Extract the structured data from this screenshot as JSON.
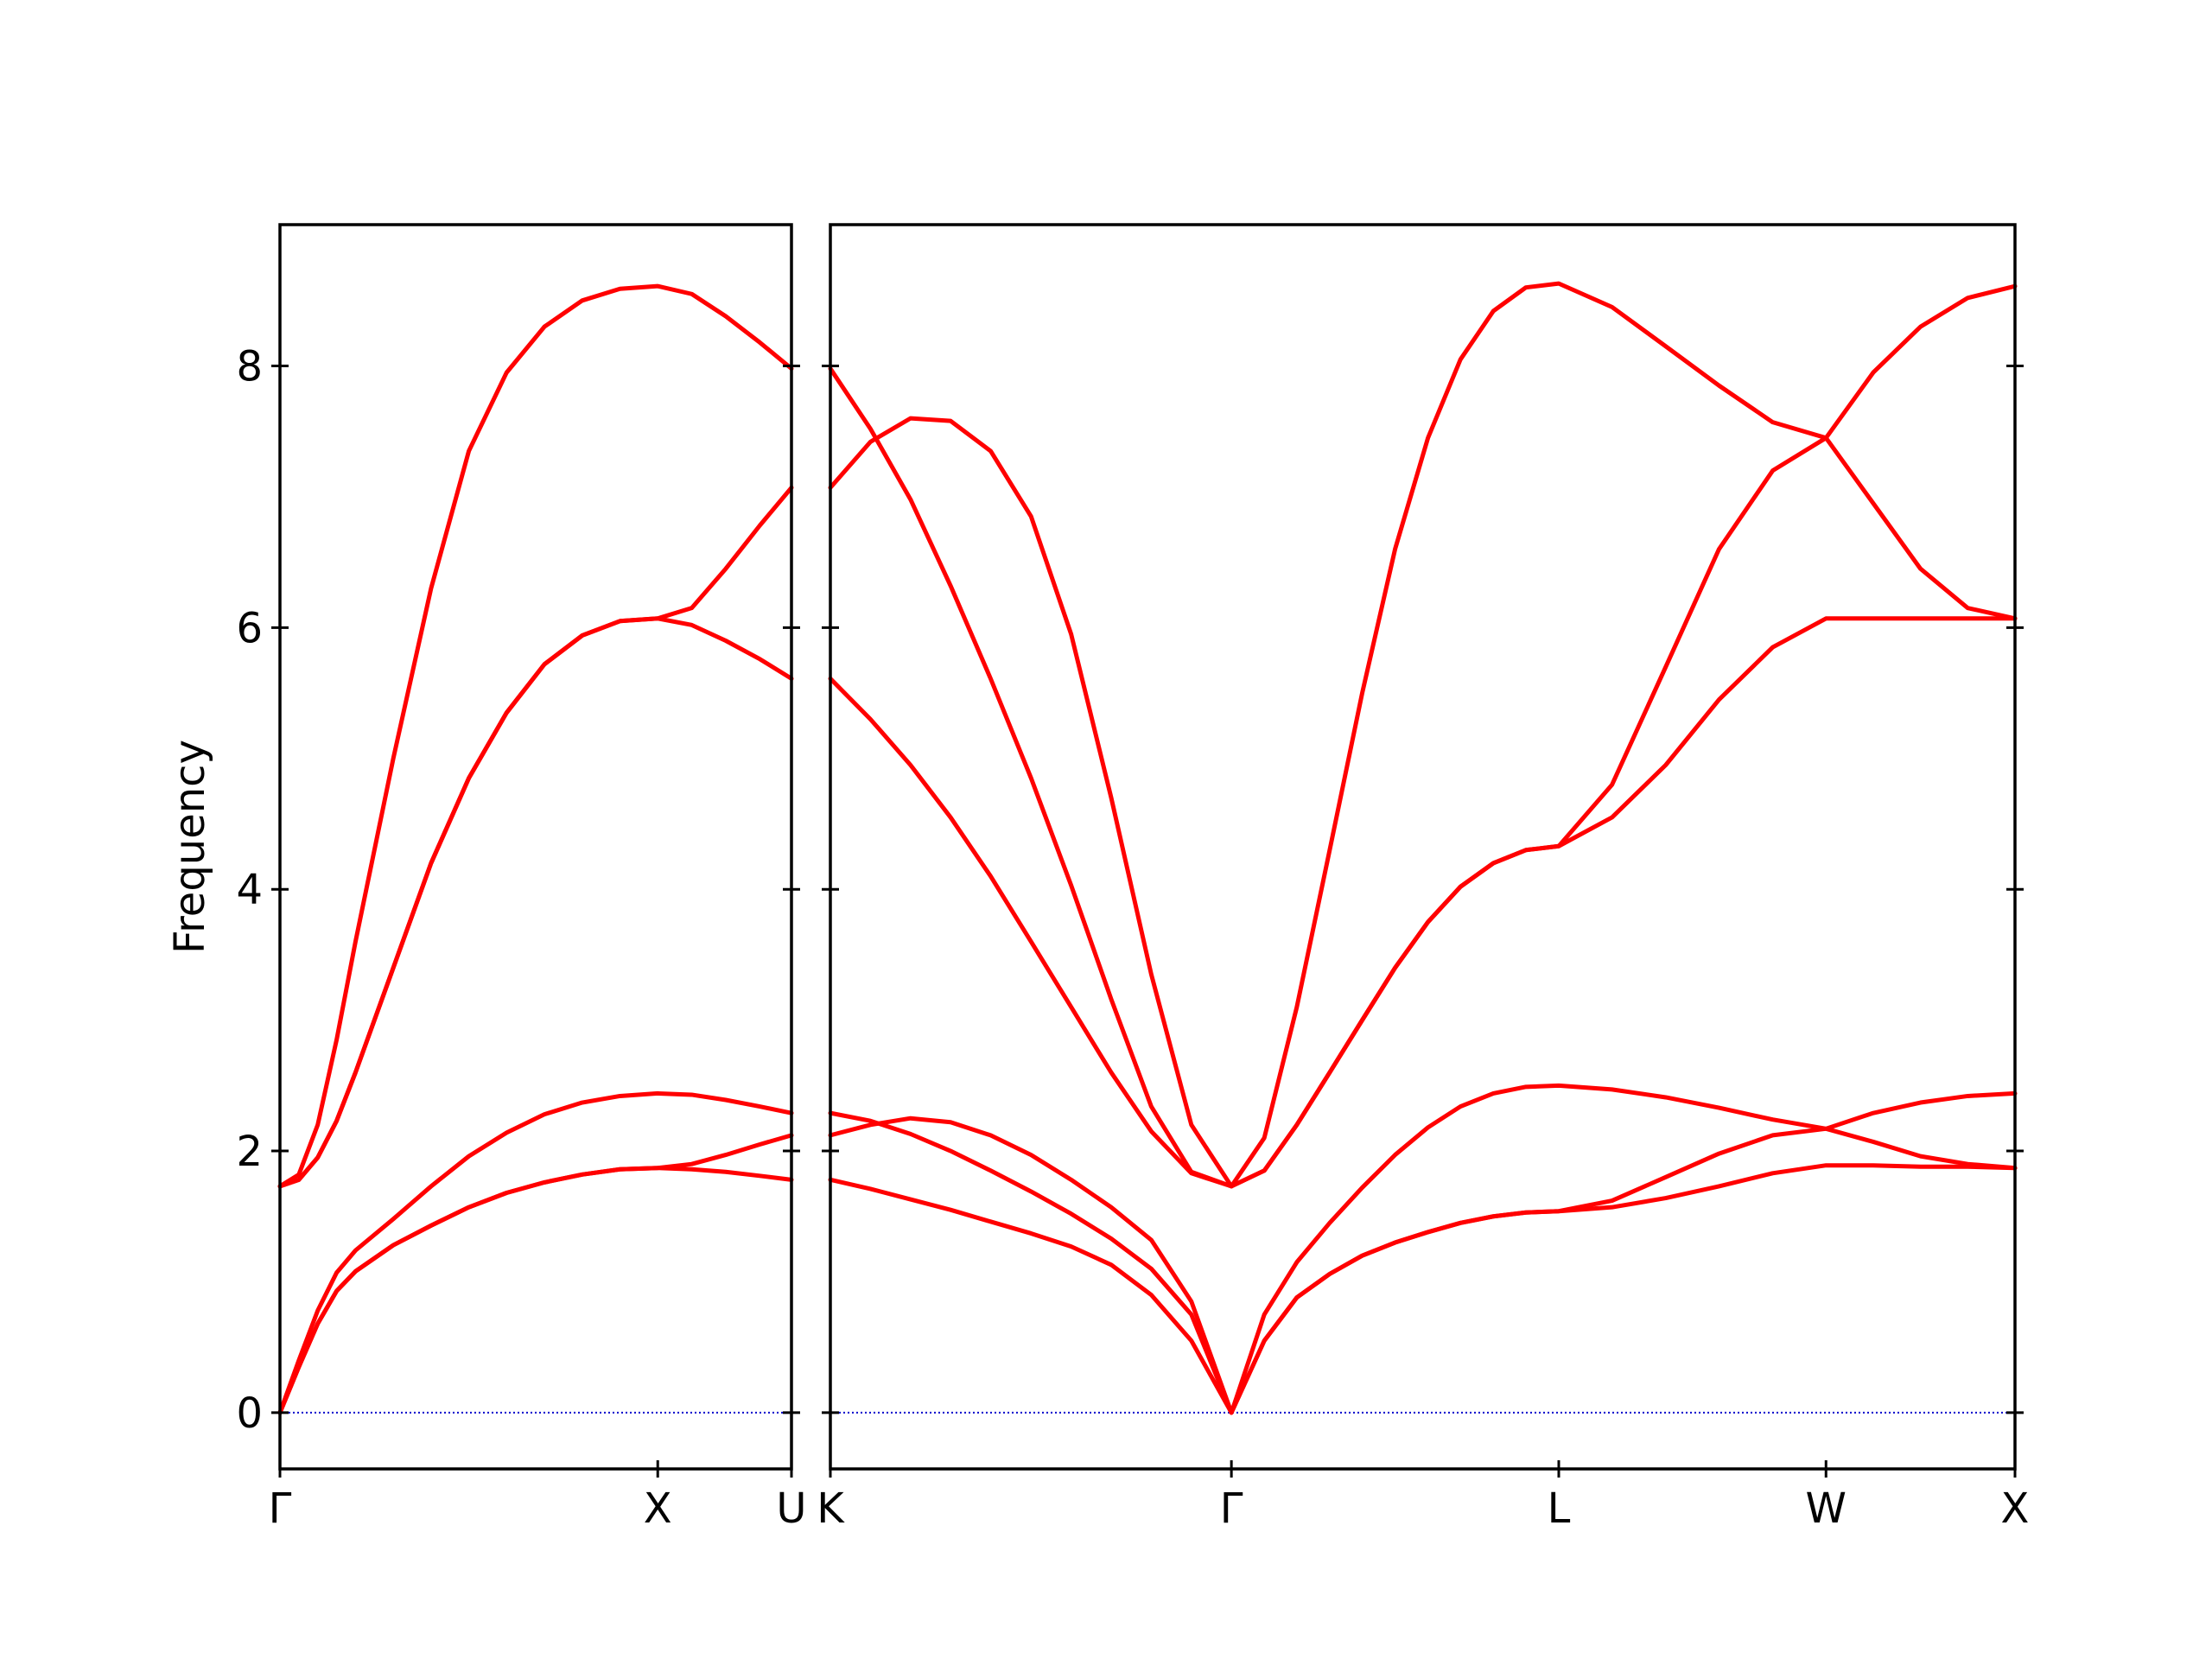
{
  "chart_data": [
    {
      "type": "line",
      "ylabel": "Frequency",
      "x": [
        0,
        0.05,
        0.1,
        0.15,
        0.2,
        0.3,
        0.4,
        0.5,
        0.6,
        0.7,
        0.8,
        0.9,
        1.0,
        1.09,
        1.18,
        1.27,
        1.354
      ],
      "series": [
        {
          "color": "#ff0000",
          "values": [
            0,
            0.35,
            0.68,
            0.93,
            1.08,
            1.28,
            1.43,
            1.57,
            1.68,
            1.76,
            1.82,
            1.86,
            1.87,
            1.86,
            1.84,
            1.81,
            1.78
          ]
        },
        {
          "color": "#ff0000",
          "values": [
            0,
            0.35,
            0.68,
            0.93,
            1.08,
            1.28,
            1.43,
            1.57,
            1.68,
            1.76,
            1.82,
            1.86,
            1.87,
            1.9,
            1.97,
            2.05,
            2.12
          ]
        },
        {
          "color": "#ff0000",
          "values": [
            0,
            0.4,
            0.78,
            1.07,
            1.24,
            1.48,
            1.73,
            1.96,
            2.14,
            2.28,
            2.37,
            2.42,
            2.44,
            2.43,
            2.39,
            2.34,
            2.29
          ]
        },
        {
          "color": "#ff0000",
          "values": [
            1.73,
            1.78,
            1.95,
            2.23,
            2.6,
            3.4,
            4.2,
            4.85,
            5.35,
            5.72,
            5.94,
            6.05,
            6.07,
            6.02,
            5.9,
            5.76,
            5.61
          ]
        },
        {
          "color": "#ff0000",
          "values": [
            1.73,
            1.78,
            1.95,
            2.23,
            2.6,
            3.4,
            4.2,
            4.85,
            5.35,
            5.72,
            5.94,
            6.05,
            6.07,
            6.15,
            6.45,
            6.78,
            7.07
          ]
        },
        {
          "color": "#ff0000",
          "values": [
            1.73,
            1.82,
            2.2,
            2.85,
            3.6,
            5.0,
            6.3,
            7.35,
            7.95,
            8.3,
            8.5,
            8.59,
            8.61,
            8.55,
            8.38,
            8.18,
            7.98
          ]
        }
      ],
      "xlim": [
        0,
        1.354
      ],
      "xticks": [
        {
          "value": 0,
          "label": "Γ"
        },
        {
          "value": 1.0,
          "label": "X"
        },
        {
          "value": 1.354,
          "label": "U"
        }
      ],
      "ylim": [
        -0.43,
        9.08
      ],
      "yticks": [
        0,
        2,
        4,
        6,
        8
      ],
      "ytick_labels": true,
      "hlines": [
        0
      ],
      "hline_color": "#0000cc"
    },
    {
      "type": "line",
      "x": [
        0,
        0.106,
        0.212,
        0.318,
        0.424,
        0.531,
        0.637,
        0.743,
        0.849,
        0.955,
        1.061,
        1.148,
        1.234,
        1.321,
        1.407,
        1.494,
        1.581,
        1.667,
        1.754,
        1.84,
        1.927,
        2.068,
        2.21,
        2.351,
        2.493,
        2.634,
        2.759,
        2.884,
        3.009,
        3.134
      ],
      "series": [
        {
          "color": "#ff0000",
          "values": [
            1.78,
            1.71,
            1.63,
            1.55,
            1.46,
            1.37,
            1.27,
            1.13,
            0.9,
            0.55,
            0,
            0.55,
            0.88,
            1.06,
            1.2,
            1.3,
            1.38,
            1.45,
            1.5,
            1.53,
            1.54,
            1.57,
            1.64,
            1.73,
            1.83,
            1.89,
            1.89,
            1.88,
            1.88,
            1.87
          ]
        },
        {
          "color": "#ff0000",
          "values": [
            2.12,
            2.2,
            2.25,
            2.22,
            2.12,
            1.97,
            1.78,
            1.57,
            1.32,
            0.85,
            0,
            0.55,
            0.88,
            1.06,
            1.2,
            1.3,
            1.38,
            1.45,
            1.5,
            1.53,
            1.54,
            1.62,
            1.8,
            1.98,
            2.12,
            2.17,
            2.29,
            2.37,
            2.42,
            2.44
          ]
        },
        {
          "color": "#ff0000",
          "values": [
            2.29,
            2.23,
            2.13,
            2.0,
            1.85,
            1.69,
            1.52,
            1.33,
            1.1,
            0.75,
            0,
            0.75,
            1.15,
            1.45,
            1.72,
            1.97,
            2.18,
            2.34,
            2.44,
            2.49,
            2.5,
            2.47,
            2.41,
            2.33,
            2.24,
            2.17,
            2.07,
            1.96,
            1.9,
            1.87
          ]
        },
        {
          "color": "#ff0000",
          "values": [
            5.61,
            5.3,
            4.95,
            4.55,
            4.1,
            3.6,
            3.1,
            2.6,
            2.15,
            1.83,
            1.73,
            1.85,
            2.2,
            2.6,
            3.0,
            3.4,
            3.75,
            4.02,
            4.2,
            4.3,
            4.33,
            4.55,
            4.95,
            5.45,
            5.85,
            6.07,
            6.07,
            6.07,
            6.07,
            6.07
          ]
        },
        {
          "color": "#ff0000",
          "values": [
            7.07,
            7.42,
            7.6,
            7.58,
            7.35,
            6.85,
            5.95,
            4.7,
            3.35,
            2.2,
            1.73,
            1.85,
            2.2,
            2.6,
            3.0,
            3.4,
            3.75,
            4.02,
            4.2,
            4.3,
            4.33,
            4.8,
            5.7,
            6.6,
            7.2,
            7.45,
            7.95,
            8.3,
            8.52,
            8.61
          ]
        },
        {
          "color": "#ff0000",
          "values": [
            7.98,
            7.52,
            6.98,
            6.32,
            5.61,
            4.85,
            4.03,
            3.16,
            2.34,
            1.84,
            1.73,
            2.1,
            3.1,
            4.3,
            5.5,
            6.6,
            7.45,
            8.05,
            8.42,
            8.6,
            8.63,
            8.45,
            8.15,
            7.85,
            7.57,
            7.45,
            6.95,
            6.45,
            6.15,
            6.07
          ]
        }
      ],
      "xlim": [
        0,
        3.134
      ],
      "xticks": [
        {
          "value": 0,
          "label": "K"
        },
        {
          "value": 1.061,
          "label": "Γ"
        },
        {
          "value": 1.927,
          "label": "L"
        },
        {
          "value": 2.634,
          "label": "W"
        },
        {
          "value": 3.134,
          "label": "X"
        }
      ],
      "ylim": [
        -0.43,
        9.08
      ],
      "yticks": [
        0,
        2,
        4,
        6,
        8
      ],
      "ytick_labels": false,
      "hlines": [
        0
      ],
      "hline_color": "#0000cc"
    }
  ]
}
